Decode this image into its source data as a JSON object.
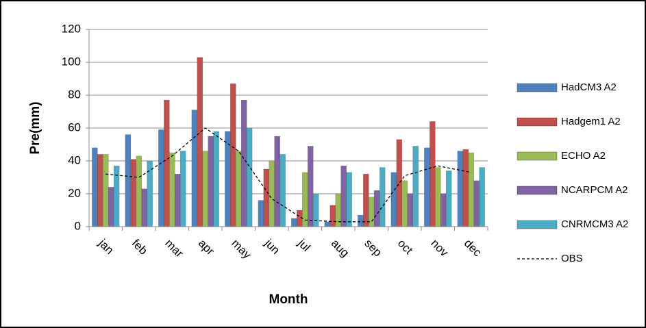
{
  "chart_data": {
    "type": "bar",
    "x_label": "Month",
    "y_label": "Pre(mm)",
    "categories": [
      "jan",
      "feb",
      "mar",
      "apr",
      "may",
      "jun",
      "jul",
      "aug",
      "sep",
      "oct",
      "nov",
      "dec"
    ],
    "series": [
      {
        "name": "HadCM3 A2",
        "color": "#4f81bd",
        "values": [
          48,
          56,
          59,
          71,
          58,
          16,
          5,
          3,
          7,
          33,
          48,
          46
        ]
      },
      {
        "name": "Hadgem1 A2",
        "color": "#c0504d",
        "values": [
          44,
          41,
          77,
          103,
          87,
          35,
          10,
          13,
          32,
          53,
          64,
          47
        ]
      },
      {
        "name": "ECHO A2",
        "color": "#9bbb59",
        "values": [
          44,
          43,
          45,
          46,
          46,
          40,
          33,
          20,
          18,
          28,
          36,
          45
        ]
      },
      {
        "name": "NCARPCM A2",
        "color": "#8064a2",
        "values": [
          24,
          23,
          32,
          55,
          77,
          55,
          49,
          37,
          22,
          20,
          20,
          28
        ]
      },
      {
        "name": "CNRMCM3 A2",
        "color": "#4bacc6",
        "values": [
          37,
          40,
          46,
          58,
          60,
          44,
          20,
          33,
          36,
          49,
          34,
          36
        ]
      },
      {
        "name": "OBS",
        "type": "line",
        "color": "#000000",
        "dashed": true,
        "values": [
          32,
          30,
          43,
          60,
          46,
          17,
          4,
          3,
          3,
          31,
          37,
          33
        ]
      }
    ],
    "ylim": [
      0,
      120
    ],
    "yticks": [
      0,
      20,
      40,
      60,
      80,
      100,
      120
    ],
    "grid": true,
    "legend": "right"
  }
}
